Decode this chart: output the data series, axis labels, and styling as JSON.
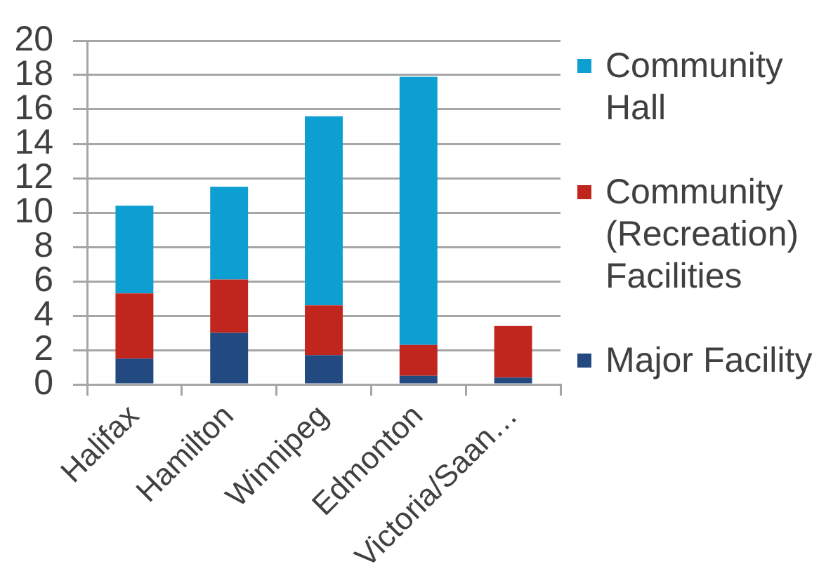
{
  "chart_data": {
    "type": "bar",
    "stacked": true,
    "categories": [
      "Halifax",
      "Hamilton",
      "Winnipeg",
      "Edmonton",
      "Victoria/Saan…"
    ],
    "series": [
      {
        "name": "Major Facility",
        "color": "#234a80",
        "values": [
          1.5,
          3.0,
          1.7,
          0.5,
          0.4
        ]
      },
      {
        "name": "Community (Recreation) Facilities",
        "color": "#c0261e",
        "values": [
          3.8,
          3.1,
          2.9,
          1.8,
          3.0
        ]
      },
      {
        "name": "Community Hall",
        "color": "#0e9fd2",
        "values": [
          5.1,
          5.4,
          11.0,
          15.6,
          0
        ]
      }
    ],
    "ylim": [
      0,
      20
    ],
    "yticks": [
      0,
      2,
      4,
      6,
      8,
      10,
      12,
      14,
      16,
      18,
      20
    ],
    "grid": "y",
    "legend": "right"
  }
}
